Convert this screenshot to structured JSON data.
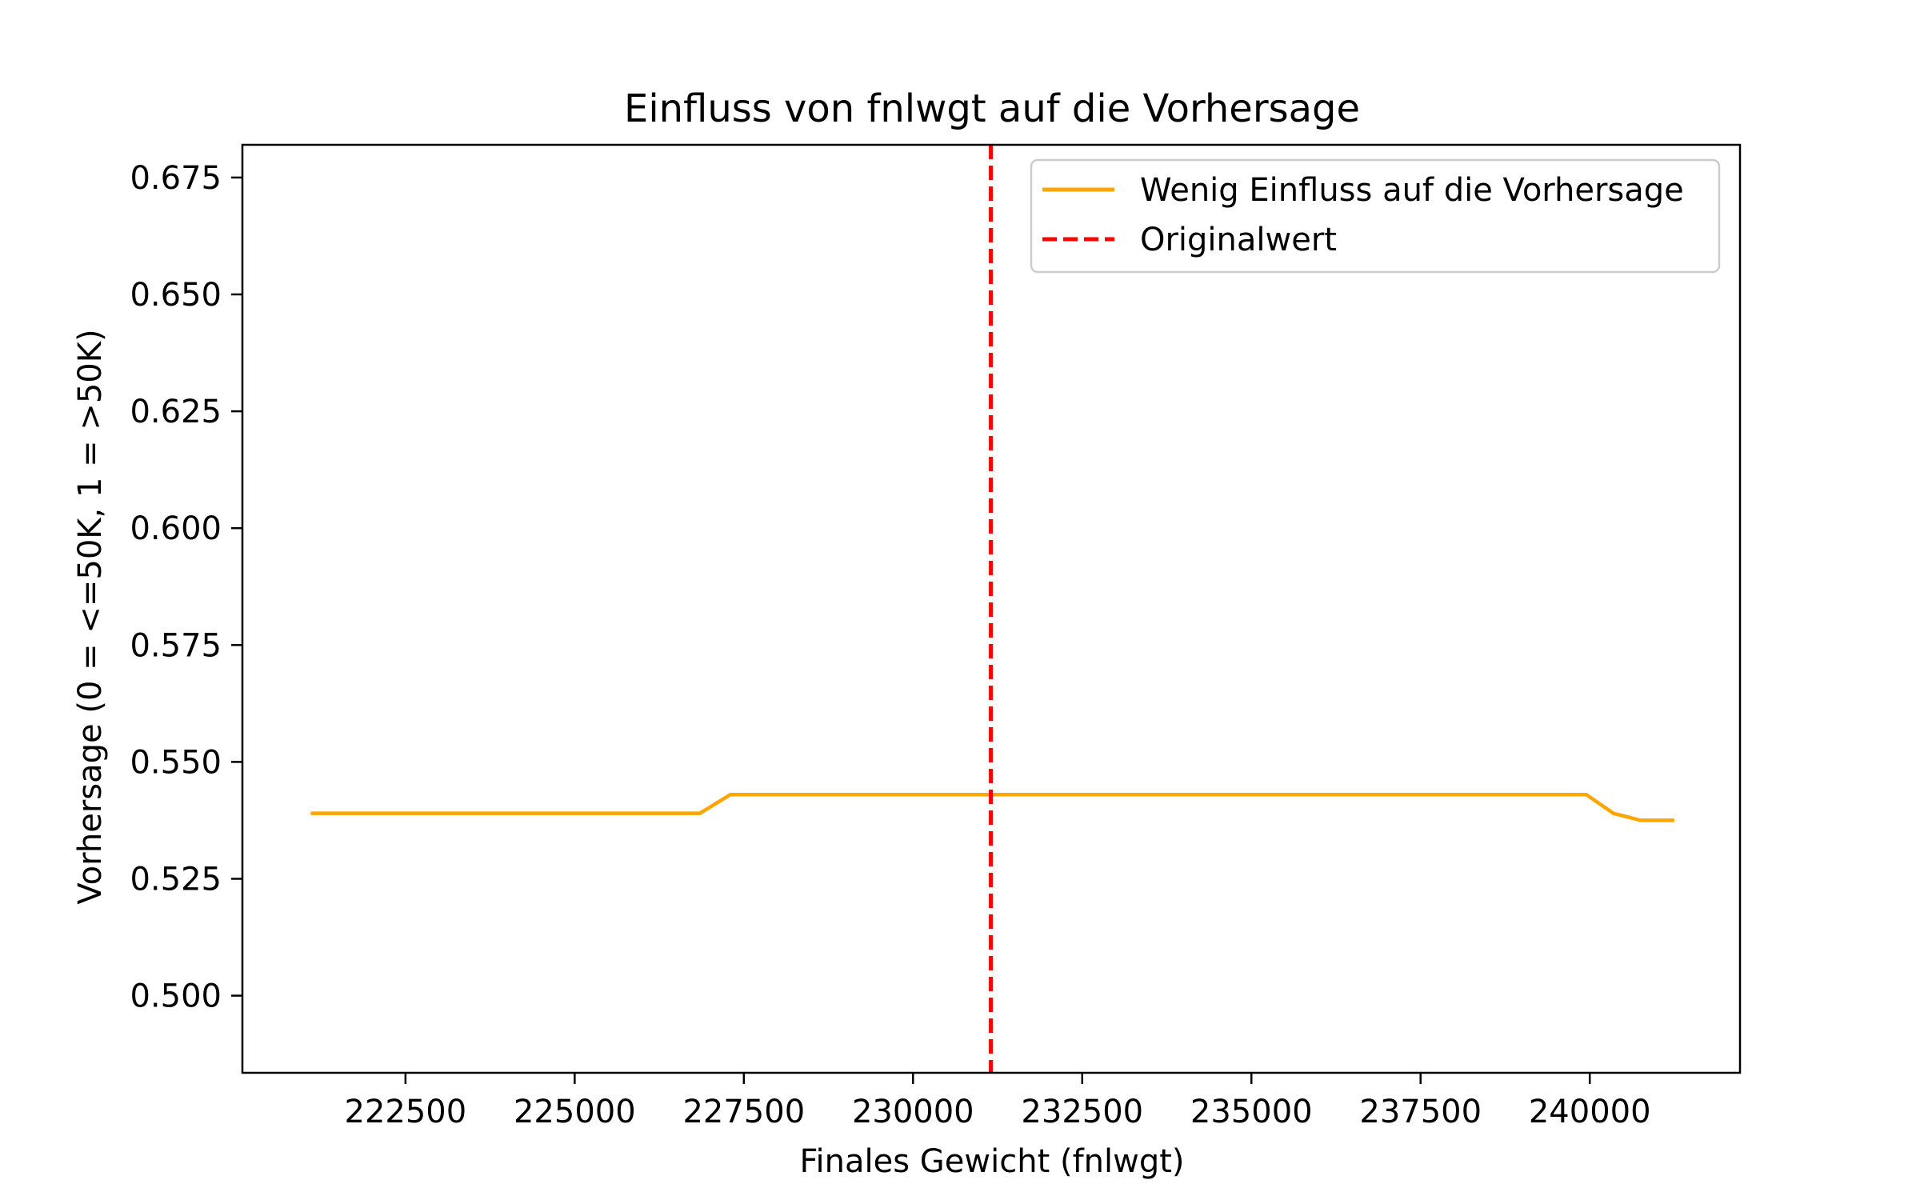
{
  "chart_data": {
    "type": "line",
    "title": "Einfluss von fnlwgt auf die Vorhersage",
    "xlabel": "Finales Gewicht (fnlwgt)",
    "ylabel": "Vorhersage (0 = <=50K, 1 = >50K)",
    "xlim": [
      220090,
      242220
    ],
    "ylim": [
      0.4835,
      0.682
    ],
    "xticks": [
      222500,
      225000,
      227500,
      230000,
      232500,
      235000,
      237500,
      240000
    ],
    "xtick_labels": [
      "222500",
      "225000",
      "227500",
      "230000",
      "232500",
      "235000",
      "237500",
      "240000"
    ],
    "yticks": [
      0.5,
      0.525,
      0.55,
      0.575,
      0.6,
      0.625,
      0.65,
      0.675
    ],
    "ytick_labels": [
      "0.500",
      "0.525",
      "0.550",
      "0.575",
      "0.600",
      "0.625",
      "0.650",
      "0.675"
    ],
    "grid": false,
    "legend_position": "top-right",
    "series": [
      {
        "name": "Wenig Einfluss auf die Vorhersage",
        "color": "#FFA500",
        "x": [
          221100,
          226850,
          227300,
          239950,
          240350,
          240750,
          241250
        ],
        "y": [
          0.539,
          0.539,
          0.543,
          0.543,
          0.539,
          0.5375,
          0.5375
        ]
      }
    ],
    "reference_lines": [
      {
        "name": "Originalwert",
        "orientation": "vertical",
        "x": 231150,
        "color": "#FF0000",
        "style": "dashed"
      }
    ]
  }
}
